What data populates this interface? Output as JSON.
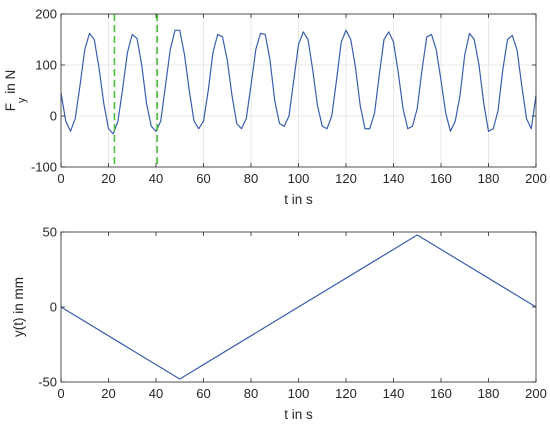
{
  "chart_data": [
    {
      "type": "line",
      "xlabel": "t in s",
      "ylabel_main": "F",
      "ylabel_sub": "y",
      "ylabel_rest": " in N",
      "xlim": [
        0,
        200
      ],
      "ylim": [
        -100,
        200
      ],
      "xticks": [
        0,
        20,
        40,
        60,
        80,
        100,
        120,
        140,
        160,
        180,
        200
      ],
      "yticks": [
        -100,
        0,
        100,
        200
      ],
      "grid": true,
      "line_color": "#3a5fad",
      "series": [
        {
          "x": [
            0,
            2,
            4,
            6,
            8,
            10,
            12,
            14,
            16,
            18,
            20,
            22,
            24,
            26,
            28,
            30,
            32,
            34,
            36,
            38,
            40,
            42,
            44,
            46,
            48,
            50,
            52,
            54,
            56,
            58,
            60,
            62,
            64,
            66,
            68,
            70,
            72,
            74,
            76,
            78,
            80,
            82,
            84,
            86,
            88,
            90,
            92,
            94,
            96,
            98,
            100,
            102,
            104,
            106,
            108,
            110,
            112,
            114,
            116,
            118,
            120,
            122,
            124,
            126,
            128,
            130,
            132,
            134,
            136,
            138,
            140,
            142,
            144,
            146,
            148,
            150,
            152,
            154,
            156,
            158,
            160,
            162,
            164,
            166,
            168,
            170,
            172,
            174,
            176,
            178,
            180,
            182,
            184,
            186,
            188,
            190,
            192,
            194,
            196,
            198,
            200
          ],
          "values": [
            45,
            -10,
            -30,
            -5,
            60,
            130,
            162,
            150,
            95,
            25,
            -25,
            -35,
            -10,
            55,
            125,
            160,
            152,
            100,
            25,
            -20,
            -30,
            -10,
            60,
            130,
            168,
            168,
            120,
            50,
            -10,
            -25,
            -10,
            50,
            125,
            160,
            155,
            110,
            40,
            -15,
            -25,
            -5,
            60,
            130,
            162,
            160,
            110,
            30,
            -15,
            -20,
            0,
            70,
            140,
            165,
            150,
            90,
            20,
            -20,
            -25,
            0,
            70,
            145,
            168,
            150,
            95,
            20,
            -25,
            -25,
            5,
            80,
            150,
            165,
            145,
            85,
            15,
            -25,
            -20,
            15,
            90,
            155,
            160,
            130,
            70,
            5,
            -30,
            -10,
            40,
            120,
            162,
            150,
            100,
            25,
            -30,
            -25,
            10,
            90,
            150,
            158,
            130,
            60,
            -5,
            -25,
            40
          ]
        }
      ],
      "markers": {
        "x": [
          22.5,
          40.5
        ],
        "color": "#4bbf3a"
      }
    },
    {
      "type": "line",
      "xlabel": "t in s",
      "ylabel": "y(t) in mm",
      "xlim": [
        0,
        200
      ],
      "ylim": [
        -50,
        50
      ],
      "xticks": [
        0,
        20,
        40,
        60,
        80,
        100,
        120,
        140,
        160,
        180,
        200
      ],
      "yticks": [
        -50,
        0,
        50
      ],
      "grid": false,
      "line_color": "#3a5fad",
      "series": [
        {
          "x": [
            0,
            50,
            150,
            200
          ],
          "values": [
            0,
            -48,
            48,
            0
          ]
        }
      ]
    }
  ]
}
